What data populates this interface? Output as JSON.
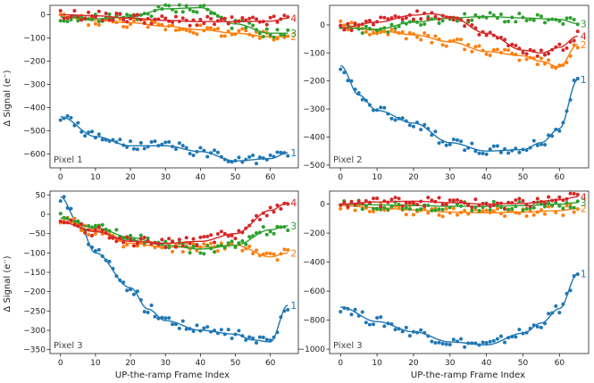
{
  "figure": {
    "ylabel": "Δ Signal (e⁻)",
    "xlabel": "UP-the-ramp Frame Index"
  },
  "colors": {
    "1": "#1f77b4",
    "2": "#ff7f0e",
    "3": "#2ca02c",
    "4": "#d62728"
  },
  "chart_data": [
    {
      "type": "scatter",
      "panel_label": "Pixel 1",
      "xlim": [
        -3,
        68
      ],
      "ylim": [
        -660,
        40
      ],
      "xticks": [
        0,
        10,
        20,
        30,
        40,
        50,
        60
      ],
      "yticks": [
        -600,
        -500,
        -400,
        -300,
        -200,
        -100,
        0
      ],
      "series": [
        {
          "name": "1",
          "x": [
            0,
            10,
            20,
            30,
            40,
            50,
            60,
            65
          ],
          "y": [
            -440,
            -525,
            -565,
            -565,
            -590,
            -630,
            -620,
            -595
          ]
        },
        {
          "name": "2",
          "x": [
            0,
            10,
            20,
            30,
            40,
            50,
            60,
            65
          ],
          "y": [
            -10,
            -25,
            -35,
            -50,
            -65,
            -80,
            -95,
            -95
          ]
        },
        {
          "name": "3",
          "x": [
            0,
            10,
            20,
            30,
            40,
            50,
            60,
            65
          ],
          "y": [
            -10,
            -18,
            -10,
            25,
            30,
            -40,
            -80,
            -80
          ]
        },
        {
          "name": "4",
          "x": [
            0,
            10,
            20,
            30,
            40,
            50,
            60,
            65
          ],
          "y": [
            0,
            -5,
            -15,
            -25,
            -30,
            -30,
            -28,
            -15
          ]
        }
      ],
      "series_labels": [
        "1",
        "2",
        "3",
        "4"
      ]
    },
    {
      "type": "scatter",
      "panel_label": "Pixel 2",
      "xlim": [
        -3,
        68
      ],
      "ylim": [
        -510,
        70
      ],
      "xticks": [
        0,
        10,
        20,
        30,
        40,
        50,
        60
      ],
      "yticks": [
        -500,
        -400,
        -300,
        -200,
        -100,
        0
      ],
      "series": [
        {
          "name": "1",
          "x": [
            0,
            5,
            10,
            20,
            30,
            40,
            50,
            55,
            60,
            65
          ],
          "y": [
            -145,
            -250,
            -305,
            -350,
            -420,
            -450,
            -445,
            -420,
            -370,
            -195
          ]
        },
        {
          "name": "2",
          "x": [
            0,
            10,
            20,
            30,
            40,
            50,
            55,
            60,
            65
          ],
          "y": [
            0,
            -20,
            -35,
            -60,
            -95,
            -110,
            -130,
            -150,
            -70
          ]
        },
        {
          "name": "3",
          "x": [
            0,
            10,
            20,
            30,
            40,
            50,
            60,
            65
          ],
          "y": [
            -10,
            -15,
            10,
            25,
            30,
            25,
            20,
            5
          ]
        },
        {
          "name": "4",
          "x": [
            0,
            10,
            20,
            25,
            30,
            40,
            50,
            55,
            60,
            65
          ],
          "y": [
            -10,
            10,
            35,
            40,
            30,
            -30,
            -90,
            -100,
            -80,
            -40
          ]
        }
      ],
      "series_labels": [
        "1",
        "2",
        "3",
        "4"
      ]
    },
    {
      "type": "scatter",
      "panel_label": "Pixel 3",
      "xlim": [
        -3,
        68
      ],
      "ylim": [
        -360,
        60
      ],
      "xticks": [
        0,
        10,
        20,
        30,
        40,
        50,
        60
      ],
      "yticks": [
        -350,
        -300,
        -250,
        -200,
        -150,
        -100,
        -50,
        0,
        50
      ],
      "series": [
        {
          "name": "1",
          "x": [
            0,
            5,
            10,
            20,
            25,
            30,
            40,
            50,
            55,
            60,
            65
          ],
          "y": [
            45,
            -20,
            -100,
            -190,
            -245,
            -275,
            -300,
            -310,
            -325,
            -330,
            -235
          ]
        },
        {
          "name": "2",
          "x": [
            0,
            10,
            20,
            30,
            40,
            50,
            60,
            65
          ],
          "y": [
            -10,
            -45,
            -75,
            -85,
            -85,
            -80,
            -110,
            -100
          ]
        },
        {
          "name": "3",
          "x": [
            0,
            10,
            20,
            30,
            40,
            50,
            60,
            65
          ],
          "y": [
            -10,
            -35,
            -60,
            -80,
            -90,
            -80,
            -40,
            -30
          ]
        },
        {
          "name": "4",
          "x": [
            0,
            10,
            20,
            30,
            40,
            50,
            60,
            65
          ],
          "y": [
            -20,
            -45,
            -70,
            -75,
            -70,
            -50,
            10,
            30
          ]
        }
      ],
      "series_labels": [
        "1",
        "2",
        "3",
        "4"
      ]
    },
    {
      "type": "scatter",
      "panel_label": "Pixel 3",
      "xlim": [
        -3,
        68
      ],
      "ylim": [
        -1030,
        90
      ],
      "xticks": [
        0,
        10,
        20,
        30,
        40,
        50,
        60
      ],
      "yticks": [
        -1000,
        -800,
        -600,
        -400,
        -200,
        0
      ],
      "series": [
        {
          "name": "1",
          "x": [
            0,
            10,
            20,
            30,
            40,
            50,
            55,
            60,
            65
          ],
          "y": [
            -710,
            -810,
            -880,
            -950,
            -970,
            -890,
            -820,
            -720,
            -480
          ]
        },
        {
          "name": "2",
          "x": [
            0,
            10,
            20,
            30,
            40,
            50,
            60,
            65
          ],
          "y": [
            -10,
            -25,
            -40,
            -55,
            -60,
            -55,
            -45,
            -30
          ]
        },
        {
          "name": "3",
          "x": [
            0,
            10,
            20,
            30,
            40,
            50,
            60,
            65
          ],
          "y": [
            0,
            -5,
            -10,
            -15,
            -15,
            -10,
            0,
            10
          ]
        },
        {
          "name": "4",
          "x": [
            0,
            10,
            20,
            30,
            40,
            50,
            60,
            65
          ],
          "y": [
            0,
            15,
            20,
            10,
            0,
            5,
            30,
            50
          ]
        }
      ],
      "series_labels": [
        "1",
        "2",
        "3",
        "4"
      ]
    }
  ]
}
